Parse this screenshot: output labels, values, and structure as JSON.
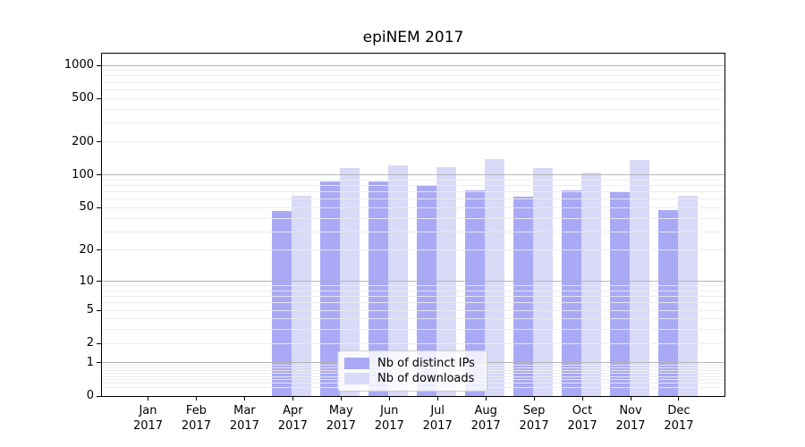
{
  "title": "epiNEM 2017",
  "colors": {
    "ips": "#a9a9f6",
    "downloads": "#d9d9f8",
    "major_grid": "rgba(176,176,176,0.9)",
    "minor_grid": "rgba(235,235,235,0.9)",
    "spine": "#000000",
    "legend_border": "#cccccc"
  },
  "chart_data": {
    "type": "bar",
    "title": "epiNEM 2017",
    "categories": [
      "Jan",
      "Feb",
      "Mar",
      "Apr",
      "May",
      "Jun",
      "Jul",
      "Aug",
      "Sep",
      "Oct",
      "Nov",
      "Dec"
    ],
    "year": "2017",
    "series": [
      {
        "name": "Nb of distinct IPs",
        "values": [
          0,
          0,
          0,
          47,
          88,
          88,
          81,
          73,
          63,
          72,
          70,
          48
        ]
      },
      {
        "name": "Nb of downloads",
        "values": [
          0,
          0,
          0,
          64,
          117,
          123,
          118,
          141,
          115,
          106,
          138,
          65
        ]
      }
    ],
    "yticks": [
      0,
      1,
      2,
      5,
      10,
      20,
      50,
      100,
      200,
      500,
      1000
    ],
    "yscale": "log1p",
    "ylim": [
      0,
      1325
    ],
    "grid": "on",
    "legend_position": "lower center"
  }
}
